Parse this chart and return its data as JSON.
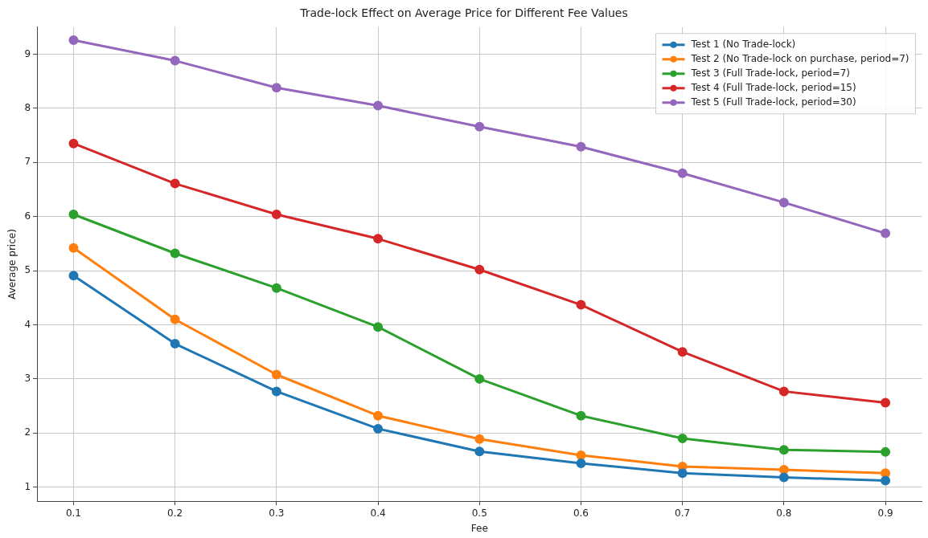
{
  "chart_data": {
    "type": "line",
    "title": "Trade-lock Effect on Average Price for Different Fee Values",
    "xlabel": "Fee",
    "ylabel": "Average price)",
    "x": [
      0.1,
      0.2,
      0.3,
      0.4,
      0.5,
      0.6,
      0.7,
      0.8,
      0.9
    ],
    "xlim": [
      0.064,
      0.936
    ],
    "xticks": [
      0.1,
      0.2,
      0.3,
      0.4,
      0.5,
      0.6,
      0.7,
      0.8,
      0.9
    ],
    "ylim": [
      0.74,
      9.5
    ],
    "yticks": [
      1,
      2,
      3,
      4,
      5,
      6,
      7,
      8,
      9
    ],
    "grid": true,
    "legend": "top right",
    "marker": "circle",
    "line_style": "solid",
    "series": [
      {
        "name": "Test 1 (No Trade-lock)",
        "color": "#1f77b4",
        "values": [
          4.91,
          3.65,
          2.77,
          2.08,
          1.66,
          1.44,
          1.26,
          1.18,
          1.12
        ]
      },
      {
        "name": "Test 2 (No Trade-lock on purchase, period=7)",
        "color": "#ff7f0e",
        "values": [
          5.42,
          4.1,
          3.08,
          2.32,
          1.89,
          1.59,
          1.38,
          1.32,
          1.26
        ]
      },
      {
        "name": "Test 3 (Full Trade-lock, period=7)",
        "color": "#2ca02c",
        "values": [
          6.04,
          5.32,
          4.68,
          3.96,
          3.0,
          2.32,
          1.9,
          1.69,
          1.65
        ]
      },
      {
        "name": "Test 4 (Full Trade-lock, period=15)",
        "color": "#d62728",
        "values": [
          7.35,
          6.61,
          6.04,
          5.59,
          5.02,
          4.37,
          3.5,
          2.77,
          2.56
        ]
      },
      {
        "name": "Test 5 (Full Trade-lock, period=30)",
        "color": "#9467bd",
        "values": [
          9.26,
          8.88,
          8.38,
          8.05,
          7.66,
          7.29,
          6.8,
          6.26,
          5.69
        ]
      }
    ]
  }
}
